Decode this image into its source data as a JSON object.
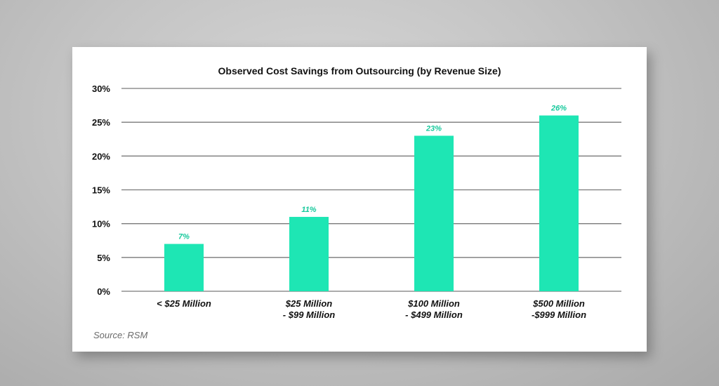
{
  "colors": {
    "bar": "#1ee6b4",
    "data_label": "#17c99c",
    "gridline": "#7a7a7a",
    "text": "#111111",
    "source": "#6a6a6a"
  },
  "chart_data": {
    "type": "bar",
    "title": "Observed Cost Savings from Outsourcing (by Revenue Size)",
    "xlabel": "",
    "ylabel": "",
    "categories": [
      [
        "< $25 Million"
      ],
      [
        "$25 Million",
        "- $99 Million"
      ],
      [
        "$100 Million",
        "- $499 Million"
      ],
      [
        "$500 Million",
        "-$999 Million"
      ]
    ],
    "values": [
      7,
      11,
      23,
      26
    ],
    "data_labels": [
      "7%",
      "11%",
      "23%",
      "26%"
    ],
    "ylim": [
      0,
      30
    ],
    "yticks": [
      0,
      5,
      10,
      15,
      20,
      25,
      30
    ],
    "ytick_labels": [
      "0%",
      "5%",
      "10%",
      "15%",
      "20%",
      "25%",
      "30%"
    ],
    "grid": true,
    "legend": "none"
  },
  "source_text": "Source: RSM"
}
